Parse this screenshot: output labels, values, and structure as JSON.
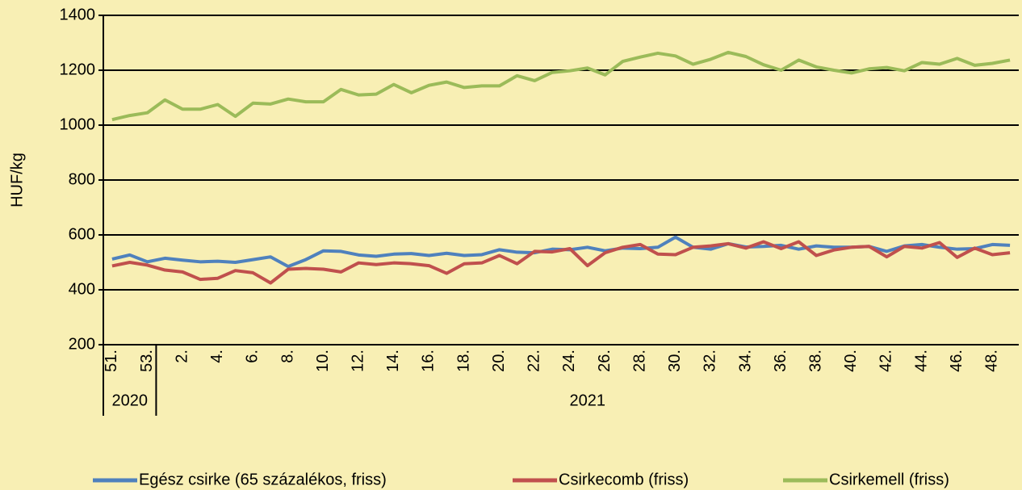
{
  "chart_data": {
    "type": "line",
    "ylabel": "HUF/kg",
    "categories": [
      "51.",
      null,
      "53.",
      null,
      "2.",
      null,
      "4.",
      null,
      "6.",
      null,
      "8.",
      null,
      "10.",
      null,
      "12.",
      null,
      "14.",
      null,
      "16.",
      null,
      "18.",
      null,
      "20.",
      null,
      "22.",
      null,
      "24.",
      null,
      "26.",
      null,
      "28.",
      null,
      "30.",
      null,
      "32.",
      null,
      "34.",
      null,
      "36.",
      null,
      "38.",
      null,
      "40.",
      null,
      "42.",
      null,
      "44.",
      null,
      "46.",
      null,
      "48.",
      null
    ],
    "x_groups": [
      {
        "label": "2020",
        "span": 3
      },
      {
        "label": "2021",
        "span": 49
      }
    ],
    "ylim": [
      200,
      1400
    ],
    "yticks": [
      200,
      400,
      600,
      800,
      1000,
      1200,
      1400
    ],
    "grid": true,
    "legend": "bottom",
    "series": [
      {
        "name": "Egész csirke (65 százalékos, friss)",
        "color": "#4f81bd",
        "values": [
          512,
          527,
          502,
          515,
          508,
          502,
          504,
          500,
          510,
          520,
          485,
          510,
          542,
          540,
          527,
          522,
          530,
          532,
          525,
          533,
          525,
          528,
          546,
          537,
          535,
          548,
          546,
          555,
          542,
          552,
          550,
          555,
          592,
          555,
          548,
          568,
          556,
          558,
          562,
          548,
          560,
          555,
          555,
          558,
          540,
          560,
          565,
          555,
          548,
          550,
          565,
          562
        ]
      },
      {
        "name": "Csirkecomb (friss)",
        "color": "#c0504d",
        "values": [
          487,
          500,
          490,
          472,
          465,
          438,
          442,
          470,
          462,
          425,
          475,
          478,
          475,
          465,
          498,
          492,
          498,
          495,
          488,
          460,
          495,
          498,
          525,
          495,
          540,
          538,
          550,
          488,
          535,
          555,
          565,
          530,
          528,
          555,
          560,
          568,
          552,
          575,
          550,
          575,
          525,
          545,
          555,
          558,
          520,
          558,
          552,
          572,
          518,
          552,
          528,
          535
        ]
      },
      {
        "name": "Csirkemell (friss)",
        "color": "#9bbb59",
        "values": [
          1020,
          1035,
          1045,
          1092,
          1058,
          1058,
          1075,
          1032,
          1080,
          1077,
          1095,
          1085,
          1085,
          1130,
          1110,
          1113,
          1148,
          1118,
          1145,
          1157,
          1137,
          1143,
          1143,
          1180,
          1162,
          1192,
          1198,
          1208,
          1183,
          1232,
          1248,
          1262,
          1252,
          1222,
          1240,
          1265,
          1250,
          1220,
          1200,
          1237,
          1212,
          1200,
          1190,
          1205,
          1210,
          1198,
          1228,
          1222,
          1243,
          1218,
          1225,
          1237
        ]
      }
    ]
  }
}
